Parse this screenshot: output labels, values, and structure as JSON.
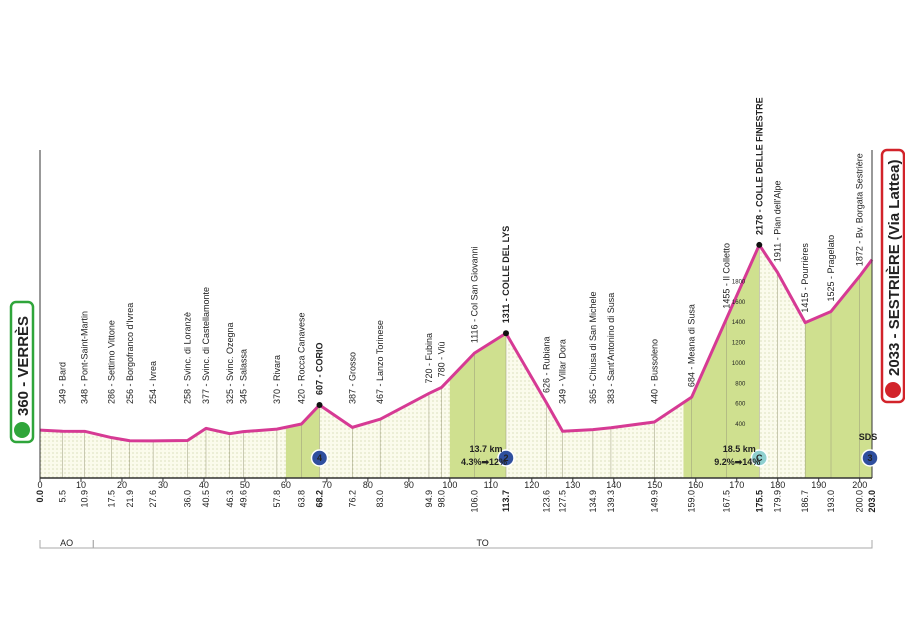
{
  "chart_data": {
    "type": "area",
    "x": [
      0,
      5.5,
      10.9,
      17.5,
      21.9,
      27.6,
      36,
      40.5,
      46.3,
      49.6,
      57.8,
      63.8,
      68.2,
      76.2,
      83,
      94.9,
      98,
      106,
      113.7,
      123.6,
      127.5,
      134.9,
      139.3,
      149.9,
      159,
      167.5,
      175.5,
      179.9,
      186.7,
      193,
      200,
      203
    ],
    "x_labels": [
      "0.0",
      "5.5",
      "10.9",
      "17.5",
      "21.9",
      "27.6",
      "36.0",
      "40.5",
      "46.3",
      "49.6",
      "57.8",
      "63.8",
      "68.2",
      "76.2",
      "83.0",
      "94.9",
      "98.0",
      "106.0",
      "113.7",
      "123.6",
      "127.5",
      "134.9",
      "139.3",
      "149.9",
      "159.0",
      "167.5",
      "175.5",
      "179.9",
      "186.7",
      "193.0",
      "200.0",
      "203.0"
    ],
    "series": [
      {
        "color": "#d63a94",
        "values": [
          360,
          349,
          348,
          286,
          256,
          254,
          258,
          377,
          325,
          345,
          370,
          420,
          607,
          387,
          467,
          720,
          780,
          1116,
          1311,
          626,
          349,
          365,
          383,
          440,
          684,
          1455,
          2178,
          1911,
          1415,
          1525,
          1872,
          2033
        ],
        "value_labels": [
          "360 - VERRÈS",
          "349 - Bard",
          "348 - Pont-Saint-Martin",
          "286 - Settimo Vittone",
          "256 - Borgofranco d'Ivrea",
          "254 - Ivrea",
          "258 - Svinc. di Loranzè",
          "377 - Svinc. di Castellamonte",
          "325 - Svinc. Ozegna",
          "345 - Salassa",
          "370 - Rivara",
          "420 - Rocca Canavese",
          "607 - CORIO",
          "387 - Grosso",
          "467 - Lanzo Torinese",
          "720 - Fubina",
          "780 - Viù",
          "1116 - Col San Giovanni",
          "1311 - COLLE DEL LYS",
          "626 - Rubiana",
          "349 - Villar Dora",
          "365 - Chiusa di San Michele",
          "383 - Sant'Antonino di Susa",
          "440 - Bussoleno",
          "684 - Meana di Susa",
          "1455 - Il Colletto",
          "2178 - COLLE DELLE FINESTRE",
          "1911 - Pian dell'Alpe",
          "1415 - Pourrières",
          "1525 - Pragelato",
          "1872 - Bv. Borgata Sestrière",
          "2033 - SESTRIÈRE (Via Lattea)"
        ]
      }
    ],
    "xlim": [
      0,
      203
    ],
    "xticks": [
      0,
      10,
      20,
      30,
      40,
      50,
      60,
      70,
      80,
      90,
      100,
      110,
      120,
      130,
      140,
      150,
      160,
      170,
      180,
      190,
      200
    ],
    "ylim": [
      -110,
      3110
    ],
    "yticks": [
      400,
      600,
      800,
      1000,
      1200,
      1400,
      1600,
      1800
    ],
    "climbs": [
      {
        "from": 60,
        "to": 68.2,
        "category": "4"
      },
      {
        "from": 100,
        "to": 113.7,
        "category": "2",
        "length": "13.7 km",
        "gradient": "4.3%➡12%"
      },
      {
        "from": 157,
        "to": 175.5,
        "category": "C",
        "length": "18.5 km",
        "gradient": "9.2%➡14%"
      },
      {
        "from": 186.7,
        "to": 203,
        "category": "3"
      }
    ],
    "regions": [
      {
        "label": "AO",
        "from": 0,
        "to": 13
      },
      {
        "label": "TO",
        "from": 13,
        "to": 203
      }
    ],
    "finish_tag": "SDS"
  }
}
